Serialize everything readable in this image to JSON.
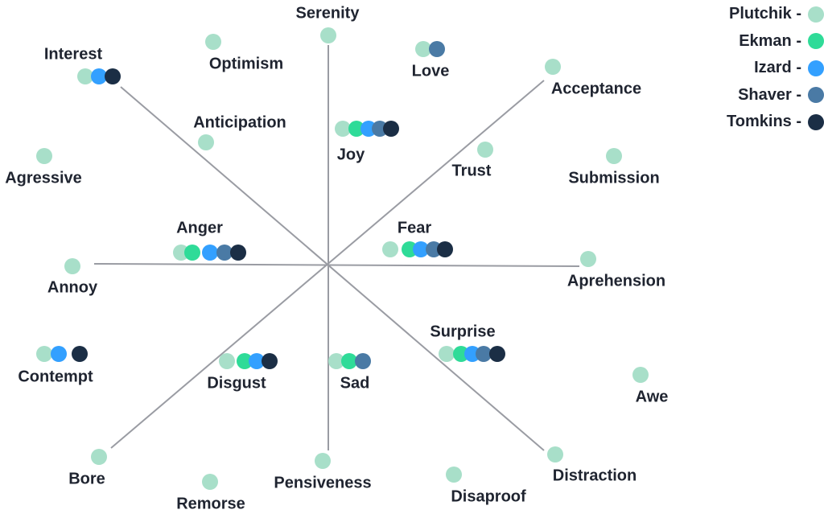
{
  "legend": [
    {
      "label": "Plutchik -",
      "model": "plutchik"
    },
    {
      "label": "Ekman -",
      "model": "ekman"
    },
    {
      "label": "Izard -",
      "model": "izard"
    },
    {
      "label": "Shaver -",
      "model": "shaver"
    },
    {
      "label": "Tomkins -",
      "model": "tomkins"
    }
  ],
  "colors": {
    "plutchik": "#a8dfc9",
    "ekman": "#2fdb98",
    "izard": "#33a0ff",
    "shaver": "#4a7aa5",
    "tomkins": "#1b2e45",
    "axis": "#9a9ca3",
    "text": "#1f2430"
  },
  "emotions": [
    {
      "label": "Serenity",
      "models": [
        "plutchik"
      ]
    },
    {
      "label": "Optimism",
      "models": [
        "plutchik"
      ]
    },
    {
      "label": "Love",
      "models": [
        "plutchik",
        "shaver"
      ]
    },
    {
      "label": "Interest",
      "models": [
        "plutchik",
        "izard",
        "tomkins"
      ]
    },
    {
      "label": "Acceptance",
      "models": [
        "plutchik"
      ]
    },
    {
      "label": "Anticipation",
      "models": [
        "plutchik"
      ]
    },
    {
      "label": "Joy",
      "models": [
        "plutchik",
        "ekman",
        "izard",
        "shaver",
        "tomkins"
      ]
    },
    {
      "label": "Trust",
      "models": [
        "plutchik"
      ]
    },
    {
      "label": "Submission",
      "models": [
        "plutchik"
      ]
    },
    {
      "label": "Agressive",
      "models": [
        "plutchik"
      ]
    },
    {
      "label": "Anger",
      "models": [
        "plutchik",
        "ekman",
        "izard",
        "shaver",
        "tomkins"
      ]
    },
    {
      "label": "Fear",
      "models": [
        "plutchik",
        "ekman",
        "izard",
        "shaver",
        "tomkins"
      ]
    },
    {
      "label": "Annoy",
      "models": [
        "plutchik"
      ]
    },
    {
      "label": "Aprehension",
      "models": [
        "plutchik"
      ]
    },
    {
      "label": "Surprise",
      "models": [
        "plutchik",
        "ekman",
        "izard",
        "shaver",
        "tomkins"
      ]
    },
    {
      "label": "Contempt",
      "models": [
        "plutchik",
        "izard",
        "tomkins"
      ]
    },
    {
      "label": "Disgust",
      "models": [
        "plutchik",
        "ekman",
        "izard",
        "tomkins"
      ]
    },
    {
      "label": "Sad",
      "models": [
        "plutchik",
        "ekman",
        "shaver"
      ]
    },
    {
      "label": "Awe",
      "models": [
        "plutchik"
      ]
    },
    {
      "label": "Bore",
      "models": [
        "plutchik"
      ]
    },
    {
      "label": "Distraction",
      "models": [
        "plutchik"
      ]
    },
    {
      "label": "Pensiveness",
      "models": [
        "plutchik"
      ]
    },
    {
      "label": "Disaproof",
      "models": [
        "plutchik"
      ]
    },
    {
      "label": "Remorse",
      "models": [
        "plutchik"
      ]
    }
  ]
}
